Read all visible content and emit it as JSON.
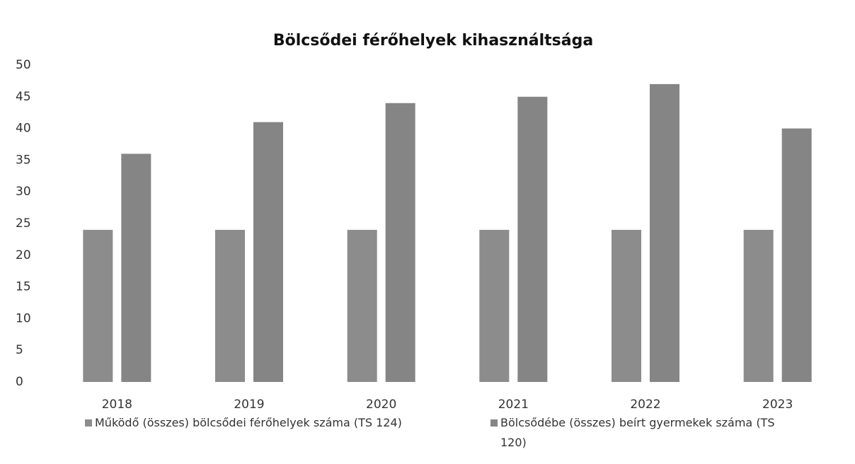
{
  "chart_data": {
    "type": "bar",
    "title": "Bölcsődei férőhelyek kihasználtsága",
    "categories": [
      "2018",
      "2019",
      "2020",
      "2021",
      "2022",
      "2023"
    ],
    "series": [
      {
        "name": "Működő (összes) bölcsődei férőhelyek száma (TS 124)",
        "color": "#8c8c8c",
        "values": [
          24,
          24,
          24,
          24,
          24,
          24
        ]
      },
      {
        "name": "Bölcsődébe (összes) beírt gyermekek száma (TS 120)",
        "color": "#858585",
        "values": [
          36,
          41,
          44,
          45,
          47,
          40
        ]
      }
    ],
    "ylim": [
      0,
      50
    ],
    "yticks": [
      0,
      5,
      10,
      15,
      20,
      25,
      30,
      35,
      40,
      45,
      50
    ],
    "grid": false,
    "legend": "bottom"
  }
}
